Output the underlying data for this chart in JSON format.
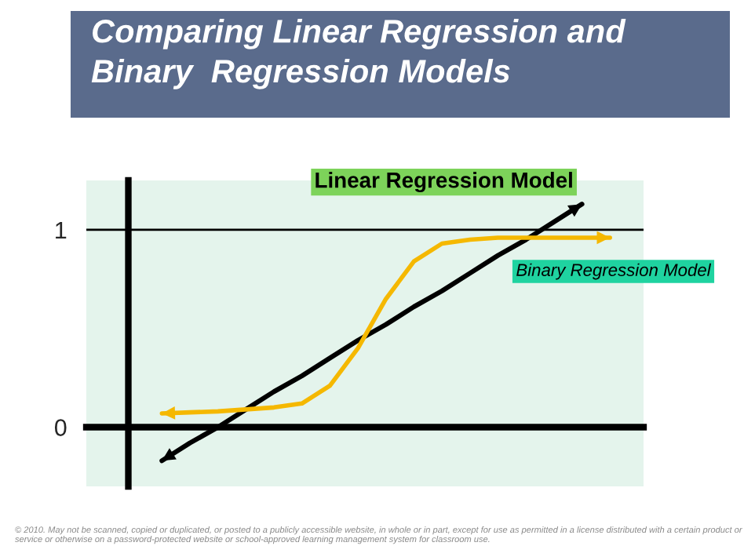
{
  "chart_data": {
    "type": "line",
    "title": "Comparing Linear Regression and\nBinary  Regression Models",
    "categories": [
      null,
      null,
      null,
      null,
      null,
      null,
      null,
      null,
      null,
      null,
      null,
      null,
      null,
      null,
      null,
      null,
      null
    ],
    "series": [
      {
        "name": "Linear Regression Model",
        "color": "#000000",
        "values": [
          -0.17,
          -0.08,
          0.0,
          0.09,
          0.18,
          0.26,
          0.35,
          0.44,
          0.52,
          0.61,
          0.69,
          0.78,
          0.87,
          0.95,
          1.04,
          1.13,
          null
        ]
      },
      {
        "name": "Binary Regression Model",
        "color": "#f5b800",
        "values": [
          0.07,
          0.075,
          0.08,
          0.09,
          0.1,
          0.12,
          0.21,
          0.4,
          0.65,
          0.84,
          0.93,
          0.95,
          0.96,
          0.96,
          0.96,
          0.96,
          0.96
        ]
      }
    ],
    "ylim": [
      -0.3,
      1.25
    ],
    "yticks": [
      0,
      1
    ],
    "tick_labels": "y",
    "legend": "right",
    "marker": "none",
    "line_style": "solid",
    "ref_lines": [
      {
        "axis": "y",
        "value": 1,
        "color": "#000000"
      }
    ],
    "annotations": [
      "© 2010. May not be scanned, copied or duplicated, or posted to a publicly accessible website, in whole or in part, except for use as permitted in a license distributed with a certain product or service or otherwise on a password-protected website or school-approved learning management system for classroom use."
    ]
  }
}
